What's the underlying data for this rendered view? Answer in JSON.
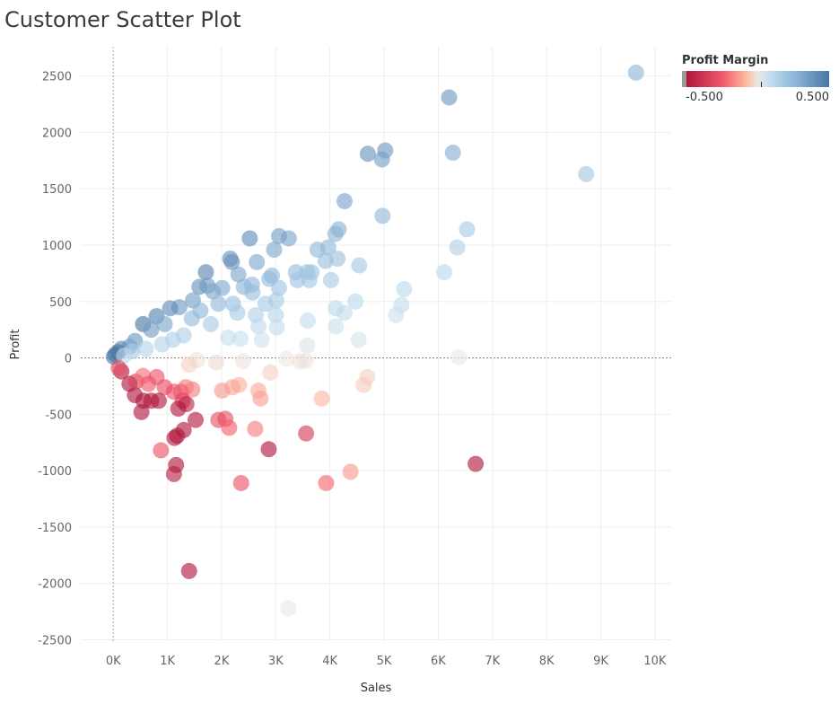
{
  "title": "Customer Scatter Plot",
  "colors": {
    "neg_strong": "#b0153c",
    "neg_mid": "#f2586a",
    "neg_light": "#fcbba1",
    "neutral": "#ebe7e3",
    "pos_light": "#c4dff0",
    "pos_mid": "#8fb8da",
    "pos_strong": "#4a76a4"
  },
  "chart_data": {
    "type": "scatter",
    "title": "Customer Scatter Plot",
    "xlabel": "Sales",
    "ylabel": "Profit",
    "xlim": [
      -600,
      10300
    ],
    "ylim": [
      -2520,
      2760
    ],
    "x_ticks": [
      0,
      1000,
      2000,
      3000,
      4000,
      5000,
      6000,
      7000,
      8000,
      9000,
      10000
    ],
    "x_tick_labels": [
      "0K",
      "1K",
      "2K",
      "3K",
      "4K",
      "5K",
      "6K",
      "7K",
      "8K",
      "9K",
      "10K"
    ],
    "y_ticks": [
      -2500,
      -2000,
      -1500,
      -1000,
      -500,
      0,
      500,
      1000,
      1500,
      2000,
      2500
    ],
    "y_tick_labels": [
      "-2500",
      "-2000",
      "-1500",
      "-1000",
      "-500",
      "0",
      "500",
      "1000",
      "1500",
      "2000",
      "2500"
    ],
    "grid": true,
    "color_by": "Profit Margin",
    "color_range": [
      -0.5,
      0.5
    ],
    "color_labels": [
      "-0.500",
      "0.500"
    ],
    "legend_position": "top-right",
    "points": [
      [
        9650,
        2530
      ],
      [
        6200,
        2310
      ],
      [
        6270,
        1820
      ],
      [
        4700,
        1810
      ],
      [
        5020,
        1840
      ],
      [
        4960,
        1760
      ],
      [
        8730,
        1630
      ],
      [
        4270,
        1390
      ],
      [
        4970,
        1260
      ],
      [
        6530,
        1140
      ],
      [
        6350,
        980
      ],
      [
        6110,
        760
      ],
      [
        5370,
        610
      ],
      [
        5320,
        470
      ],
      [
        5220,
        380
      ],
      [
        4160,
        1140
      ],
      [
        4100,
        1100
      ],
      [
        3970,
        980
      ],
      [
        3920,
        860
      ],
      [
        4140,
        880
      ],
      [
        3060,
        1080
      ],
      [
        3240,
        1060
      ],
      [
        2520,
        1060
      ],
      [
        2970,
        960
      ],
      [
        3770,
        960
      ],
      [
        4540,
        820
      ],
      [
        3580,
        760
      ],
      [
        3660,
        760
      ],
      [
        3370,
        760
      ],
      [
        3400,
        690
      ],
      [
        3620,
        690
      ],
      [
        4020,
        690
      ],
      [
        4470,
        500
      ],
      [
        4270,
        400
      ],
      [
        4110,
        440
      ],
      [
        4110,
        280
      ],
      [
        4530,
        160
      ],
      [
        3590,
        330
      ],
      [
        3580,
        110
      ],
      [
        1710,
        760
      ],
      [
        2160,
        880
      ],
      [
        2190,
        850
      ],
      [
        2650,
        850
      ],
      [
        2930,
        730
      ],
      [
        2880,
        700
      ],
      [
        2310,
        740
      ],
      [
        2410,
        630
      ],
      [
        3060,
        620
      ],
      [
        2560,
        650
      ],
      [
        2570,
        580
      ],
      [
        1590,
        630
      ],
      [
        1740,
        640
      ],
      [
        1840,
        590
      ],
      [
        2010,
        620
      ],
      [
        1470,
        510
      ],
      [
        1940,
        480
      ],
      [
        2210,
        480
      ],
      [
        2810,
        480
      ],
      [
        3010,
        510
      ],
      [
        2290,
        400
      ],
      [
        2630,
        380
      ],
      [
        3000,
        380
      ],
      [
        3020,
        270
      ],
      [
        1610,
        420
      ],
      [
        1220,
        450
      ],
      [
        1050,
        440
      ],
      [
        800,
        370
      ],
      [
        550,
        300
      ],
      [
        2680,
        280
      ],
      [
        2740,
        160
      ],
      [
        2350,
        170
      ],
      [
        2120,
        180
      ],
      [
        1450,
        350
      ],
      [
        1800,
        300
      ],
      [
        950,
        300
      ],
      [
        700,
        250
      ],
      [
        400,
        150
      ],
      [
        300,
        100
      ],
      [
        150,
        80
      ],
      [
        90,
        50
      ],
      [
        40,
        30
      ],
      [
        10,
        10
      ],
      [
        1300,
        200
      ],
      [
        1100,
        160
      ],
      [
        900,
        120
      ],
      [
        600,
        80
      ],
      [
        350,
        60
      ],
      [
        200,
        20
      ],
      [
        3200,
        -10
      ],
      [
        3450,
        -30
      ],
      [
        2400,
        -30
      ],
      [
        1900,
        -40
      ],
      [
        1550,
        -20
      ],
      [
        1400,
        -60
      ],
      [
        6380,
        5
      ],
      [
        3550,
        -25
      ],
      [
        2900,
        -130
      ],
      [
        4690,
        -170
      ],
      [
        4620,
        -240
      ],
      [
        2320,
        -240
      ],
      [
        2200,
        -260
      ],
      [
        2010,
        -290
      ],
      [
        2680,
        -290
      ],
      [
        2720,
        -360
      ],
      [
        3850,
        -360
      ],
      [
        1460,
        -280
      ],
      [
        1340,
        -260
      ],
      [
        1250,
        -300
      ],
      [
        1120,
        -300
      ],
      [
        950,
        -260
      ],
      [
        1280,
        -380
      ],
      [
        1350,
        -410
      ],
      [
        1200,
        -450
      ],
      [
        840,
        -380
      ],
      [
        700,
        -380
      ],
      [
        560,
        -380
      ],
      [
        520,
        -480
      ],
      [
        400,
        -330
      ],
      [
        300,
        -230
      ],
      [
        150,
        -120
      ],
      [
        100,
        -90
      ],
      [
        420,
        -210
      ],
      [
        550,
        -160
      ],
      [
        650,
        -230
      ],
      [
        800,
        -170
      ],
      [
        2070,
        -540
      ],
      [
        1940,
        -550
      ],
      [
        2140,
        -620
      ],
      [
        2620,
        -630
      ],
      [
        3560,
        -670
      ],
      [
        1520,
        -550
      ],
      [
        1300,
        -640
      ],
      [
        1180,
        -690
      ],
      [
        1130,
        -710
      ],
      [
        880,
        -820
      ],
      [
        2870,
        -810
      ],
      [
        1160,
        -950
      ],
      [
        1120,
        -1030
      ],
      [
        2360,
        -1110
      ],
      [
        3930,
        -1110
      ],
      [
        4380,
        -1010
      ],
      [
        6690,
        -940
      ],
      [
        1400,
        -1890
      ],
      [
        3230,
        -2220
      ]
    ],
    "margins": [
      0.26,
      0.37,
      0.29,
      0.39,
      0.37,
      0.35,
      0.19,
      0.33,
      0.25,
      0.17,
      0.15,
      0.12,
      0.11,
      0.09,
      0.07,
      0.28,
      0.27,
      0.25,
      0.22,
      0.21,
      0.35,
      0.33,
      0.42,
      0.32,
      0.25,
      0.18,
      0.21,
      0.21,
      0.23,
      0.2,
      0.19,
      0.17,
      0.11,
      0.09,
      0.11,
      0.07,
      0.04,
      0.09,
      0.03,
      0.45,
      0.41,
      0.39,
      0.32,
      0.25,
      0.24,
      0.32,
      0.26,
      0.2,
      0.25,
      0.23,
      0.4,
      0.37,
      0.32,
      0.31,
      0.35,
      0.25,
      0.22,
      0.17,
      0.17,
      0.17,
      0.14,
      0.13,
      0.09,
      0.26,
      0.37,
      0.42,
      0.46,
      0.5,
      0.1,
      0.06,
      0.07,
      0.08,
      0.24,
      0.17,
      0.32,
      0.36,
      0.38,
      0.33,
      0.45,
      0.5,
      0.5,
      0.5,
      0.15,
      0.15,
      0.13,
      0.13,
      0.17,
      0.1,
      0.0,
      -0.01,
      -0.01,
      -0.02,
      -0.01,
      -0.04,
      0.0,
      -0.01,
      -0.04,
      -0.04,
      -0.05,
      -0.1,
      -0.12,
      -0.14,
      -0.11,
      -0.13,
      -0.09,
      -0.19,
      -0.19,
      -0.24,
      -0.27,
      -0.3,
      -0.34,
      -0.45,
      -0.54,
      -0.68,
      -0.9,
      -0.82,
      -0.76,
      -0.9,
      -0.9,
      -0.5,
      -0.29,
      -0.35,
      -0.21,
      -0.26,
      -0.28,
      -0.29,
      -0.29,
      -0.24,
      -0.19,
      -0.36,
      -0.49,
      -0.59,
      -0.63,
      -0.93,
      -0.28,
      -0.82,
      -0.92,
      -0.47,
      -0.28,
      -0.23,
      -0.14,
      -1.35,
      -0.69
    ]
  }
}
